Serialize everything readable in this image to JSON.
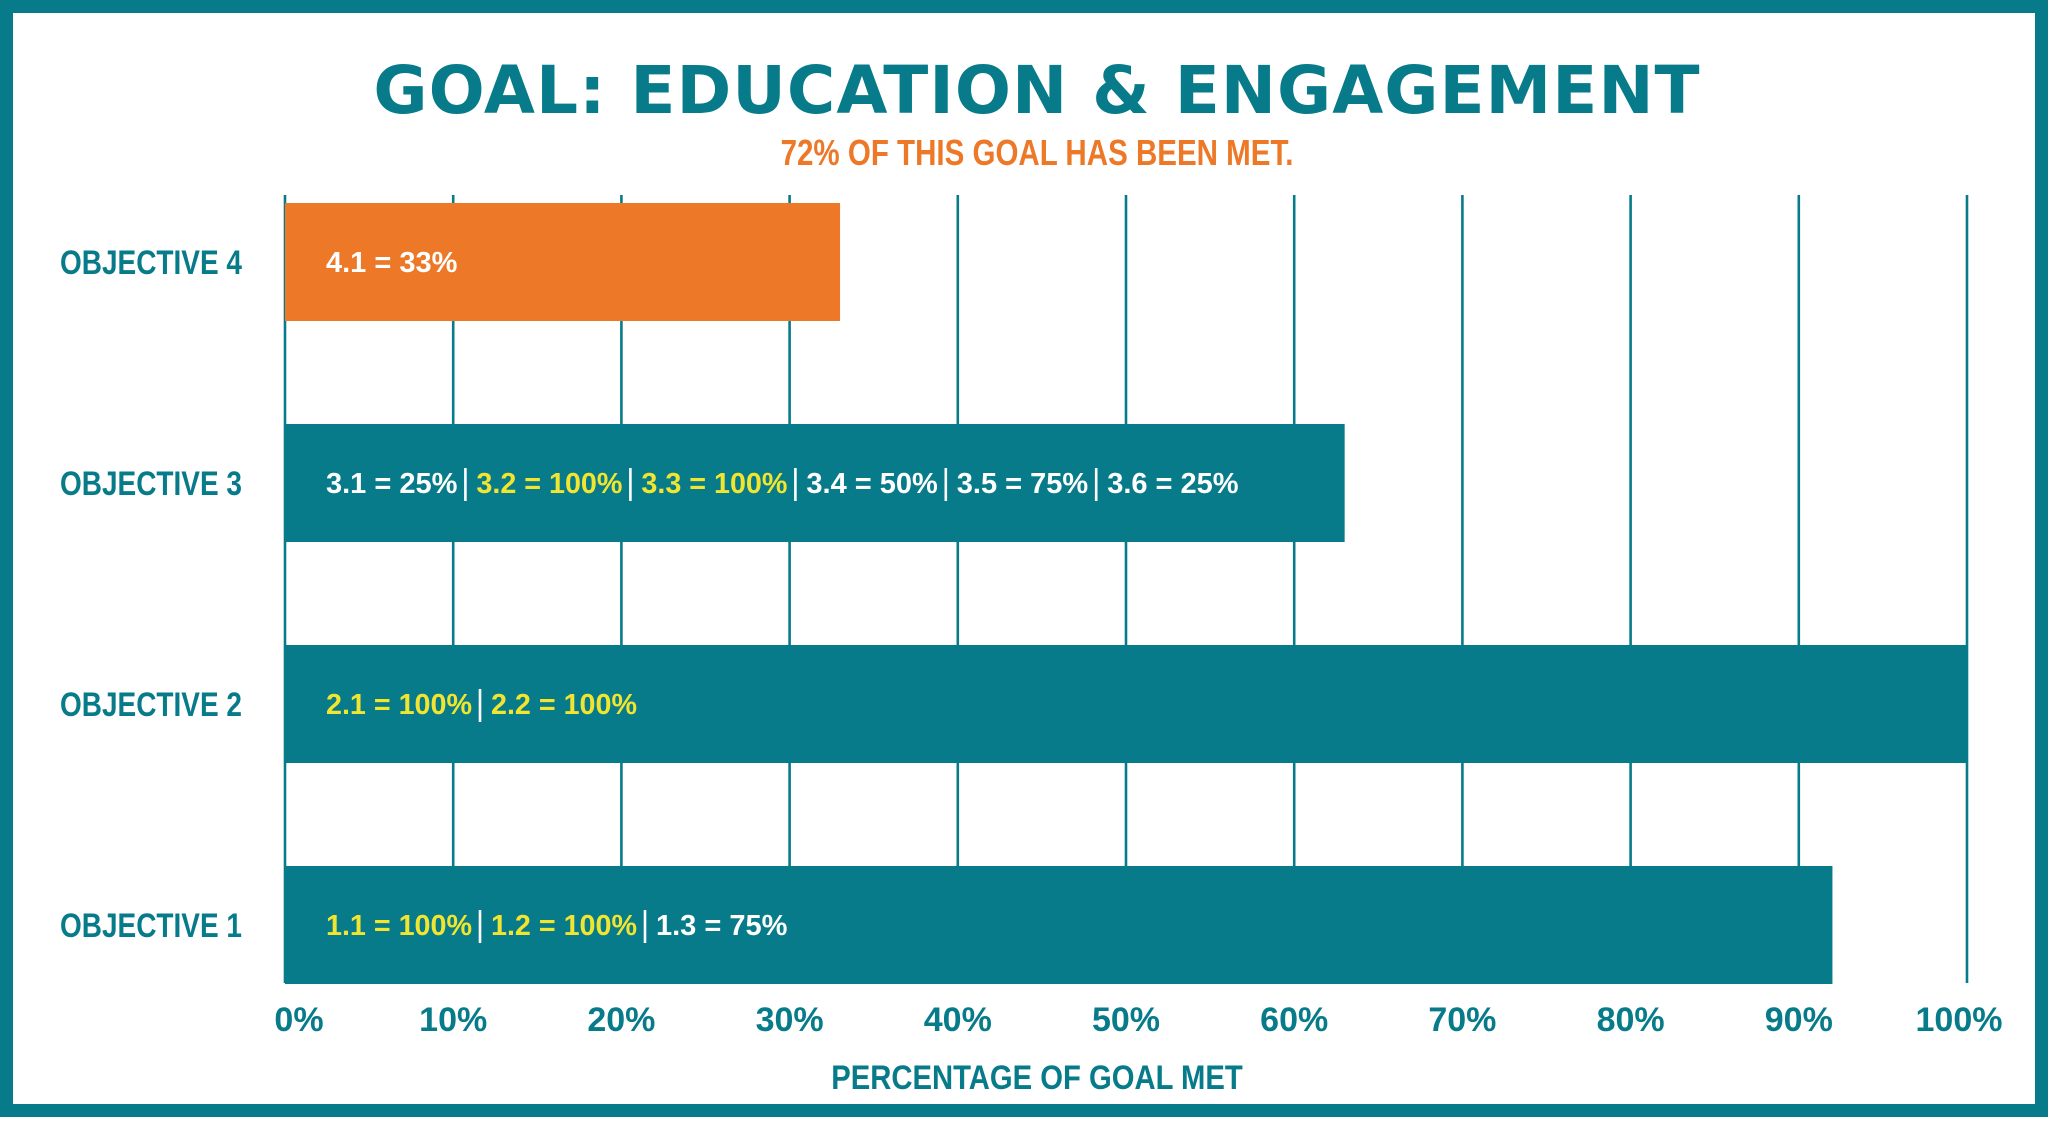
{
  "chart_data": {
    "type": "bar",
    "orientation": "horizontal",
    "title": "GOAL: EDUCATION & ENGAGEMENT",
    "subtitle": "72% OF THIS GOAL HAS BEEN MET.",
    "xlabel": "PERCENTAGE OF GOAL MET",
    "ylabel": "",
    "xlim": [
      0,
      100
    ],
    "x_ticks": [
      "0%",
      "10%",
      "20%",
      "30%",
      "40%",
      "50%",
      "60%",
      "70%",
      "80%",
      "90%",
      "100%"
    ],
    "grid": "vertical",
    "categories": [
      "OBJECTIVE 4",
      "OBJECTIVE 3",
      "OBJECTIVE 2",
      "OBJECTIVE 1"
    ],
    "values": [
      33,
      63,
      100,
      92
    ],
    "bar_colors": [
      "#ec7828",
      "#077b89",
      "#077b89",
      "#077b89"
    ],
    "bar_labels": [
      [
        {
          "text": "4.1 = 33%",
          "complete": false
        }
      ],
      [
        {
          "text": "3.1 = 25%",
          "complete": false
        },
        {
          "text": "3.2 = 100%",
          "complete": true
        },
        {
          "text": "3.3 = 100%",
          "complete": true
        },
        {
          "text": "3.4 = 50%",
          "complete": false
        },
        {
          "text": "3.5 = 75%",
          "complete": false
        },
        {
          "text": "3.6 = 25%",
          "complete": false
        }
      ],
      [
        {
          "text": "2.1 = 100%",
          "complete": true
        },
        {
          "text": "2.2 = 100%",
          "complete": true
        }
      ],
      [
        {
          "text": "1.1 = 100%",
          "complete": true
        },
        {
          "text": "1.2 = 100%",
          "complete": true
        },
        {
          "text": "1.3 = 75%",
          "complete": false
        }
      ]
    ],
    "separator": "|"
  },
  "colors": {
    "frame": "#077b89",
    "primary": "#077b89",
    "accent": "#ec7828",
    "complete_text": "#f2e530",
    "incomplete_text": "#ffffff"
  }
}
